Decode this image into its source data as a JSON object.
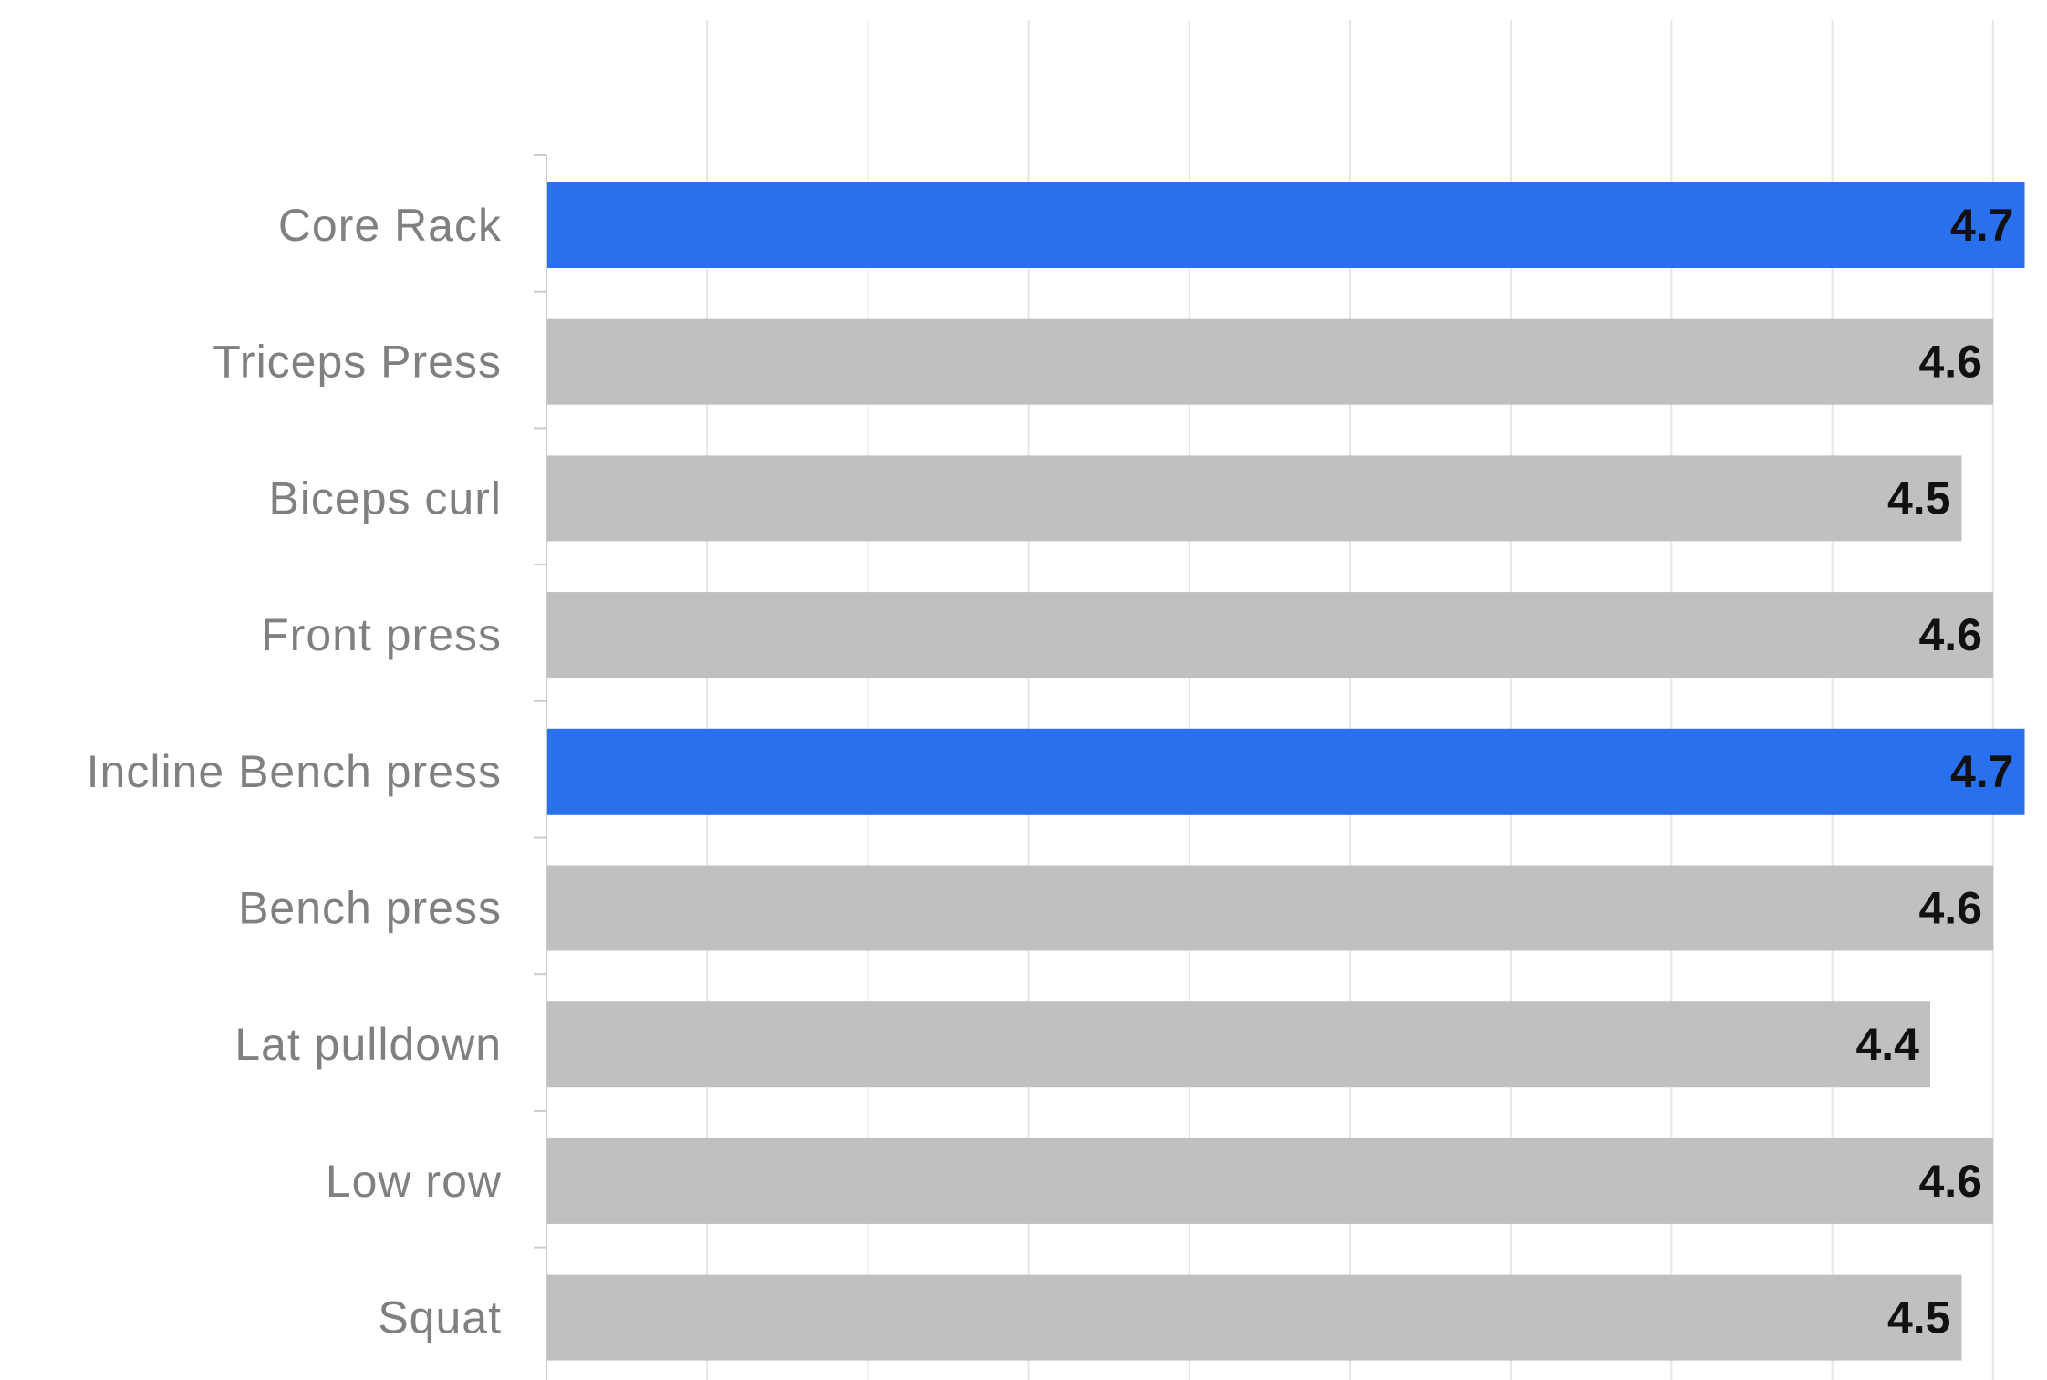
{
  "chart_data": {
    "type": "bar",
    "orientation": "horizontal",
    "title": "",
    "xlabel": "",
    "ylabel": "",
    "categories": [
      "Core Rack",
      "Triceps Press",
      "Biceps curl",
      "Front press",
      "Incline Bench press",
      "Bench press",
      "Lat pulldown",
      "Low row",
      "Squat"
    ],
    "values": [
      4.7,
      4.6,
      4.5,
      4.6,
      4.7,
      4.6,
      4.4,
      4.6,
      4.5
    ],
    "value_labels": [
      "4.7",
      "4.6",
      "4.5",
      "4.6",
      "4.7",
      "4.6",
      "4.4",
      "4.6",
      "4.5"
    ],
    "highlighted": [
      "Core Rack",
      "Incline Bench press"
    ],
    "xlim": [
      0,
      4.6
    ],
    "grid": true,
    "x_tick_labels_visible": false,
    "legend": "none",
    "colors": {
      "highlight": "#2870ee",
      "default": "#c0c0c0",
      "grid": "#e3e6ea",
      "axis": "#c9ccd0",
      "category_text": "#808080",
      "value_text": "#111111"
    }
  }
}
